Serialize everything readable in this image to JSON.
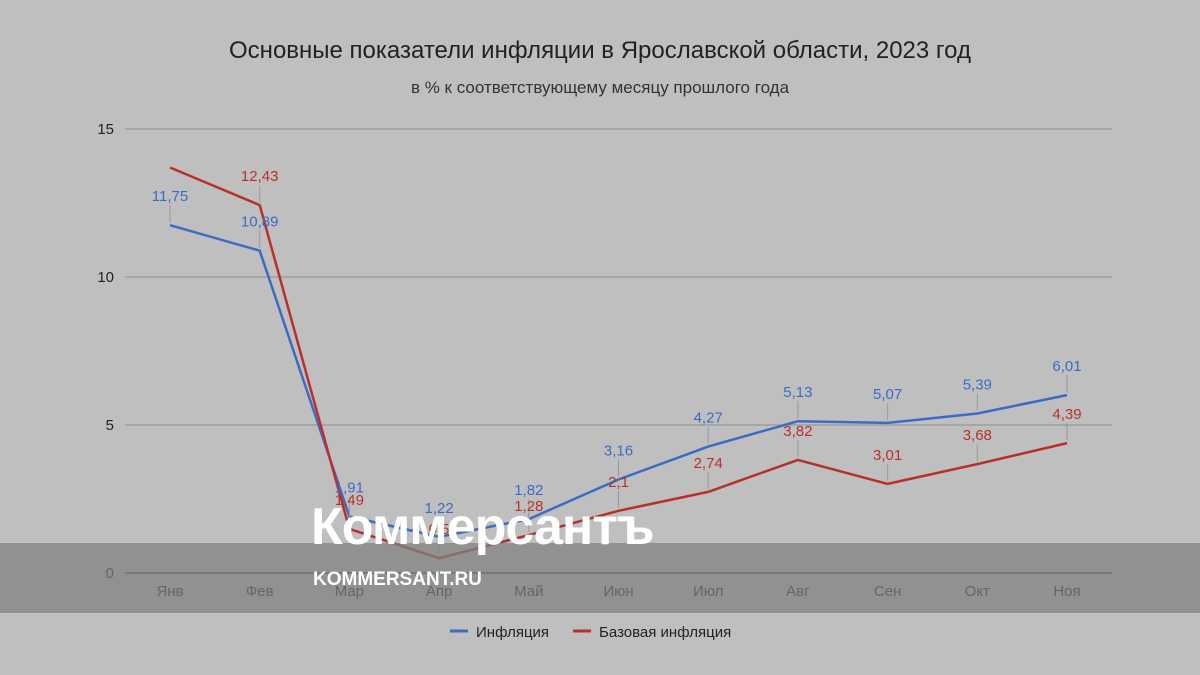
{
  "chart_data": {
    "type": "line",
    "title": "Основные показатели инфляции в Ярославской области, 2023 год",
    "subtitle": "в % к соответствующему месяцу прошлого года",
    "categories": [
      "Янв",
      "Фев",
      "Мар",
      "Апр",
      "Май",
      "Июн",
      "Июл",
      "Авг",
      "Сен",
      "Окт",
      "Ноя"
    ],
    "ylim": [
      0,
      15
    ],
    "yticks": [
      0,
      5,
      10,
      15
    ],
    "grid": true,
    "legend_position": "bottom",
    "series": [
      {
        "name": "Инфляция",
        "color": "#3b6cc4",
        "values": [
          11.75,
          10.89,
          1.91,
          1.22,
          1.82,
          3.16,
          4.27,
          5.13,
          5.07,
          5.39,
          6.01
        ],
        "labels": [
          "11,75",
          "10,89",
          "1,91",
          "1,22",
          "1,82",
          "3,16",
          "4,27",
          "5,13",
          "5,07",
          "5,39",
          "6,01"
        ]
      },
      {
        "name": "Базовая инфляция",
        "color": "#b8302a",
        "values": [
          13.7,
          12.43,
          1.49,
          0.5,
          1.28,
          2.1,
          2.74,
          3.82,
          3.01,
          3.68,
          4.39
        ],
        "labels": [
          "",
          "12,43",
          "1,49",
          "0,5",
          "1,28",
          "2,1",
          "2,74",
          "3,82",
          "3,01",
          "3,68",
          "4,39"
        ]
      }
    ]
  },
  "watermark": {
    "brand": "Коммерсантъ",
    "site": "KOMMERSANT.RU",
    "band_color": "#7f7f7f"
  }
}
